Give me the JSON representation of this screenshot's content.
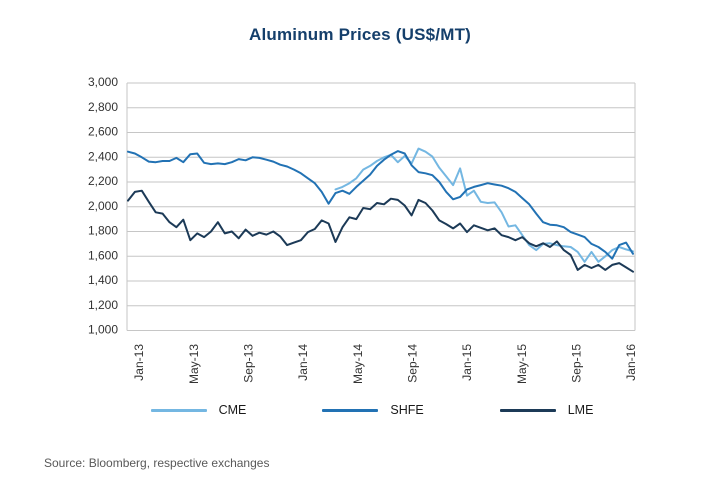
{
  "title": "Aluminum Prices (US$/MT)",
  "source_note": "Source: Bloomberg, respective exchanges",
  "colors": {
    "title": "#153F6B",
    "axis_text": "#333333",
    "grid": "#C6C6C6",
    "plot_border": "#C6C6C6",
    "source_text": "#595959",
    "cme_line": "#74B7E2",
    "shfe_line": "#2272B4",
    "lme_line": "#1C3A57"
  },
  "chart_data": {
    "type": "line",
    "title": "Aluminum Prices (US$/MT)",
    "xlabel": "",
    "ylabel": "",
    "ylim": [
      1000,
      3000
    ],
    "grid": "horizontal",
    "legend_position": "bottom",
    "x_unit": "semi-monthly points from Jan-2013 to Jan-2016",
    "x_tick_labels": [
      "Jan-13",
      "May-13",
      "Sep-13",
      "Jan-14",
      "May-14",
      "Sep-14",
      "Jan-15",
      "May-15",
      "Sep-15",
      "Jan-16"
    ],
    "y_ticks": [
      3000,
      2800,
      2600,
      2400,
      2200,
      2000,
      1800,
      1600,
      1400,
      1200,
      1000
    ],
    "y_tick_labels": [
      "3,000",
      "2,800",
      "2,600",
      "2,400",
      "2,200",
      "2,000",
      "1,800",
      "1,600",
      "1,400",
      "1,200",
      "1,000"
    ],
    "series": [
      {
        "name": "CME",
        "color": "#74B7E2",
        "values": [
          null,
          null,
          null,
          null,
          null,
          null,
          null,
          null,
          null,
          null,
          null,
          null,
          null,
          null,
          null,
          null,
          null,
          null,
          null,
          null,
          null,
          null,
          null,
          null,
          null,
          null,
          null,
          null,
          null,
          null,
          2140,
          2160,
          2190,
          2230,
          2300,
          2330,
          2370,
          2400,
          2420,
          2360,
          2410,
          2350,
          2470,
          2445,
          2405,
          2315,
          2245,
          2175,
          2310,
          2090,
          2130,
          2040,
          2030,
          2035,
          1955,
          1840,
          1850,
          1770,
          1690,
          1650,
          1700,
          1705,
          1690,
          1680,
          1675,
          1635,
          1555,
          1635,
          1555,
          1600,
          1650,
          1675,
          1655,
          1640
        ]
      },
      {
        "name": "SHFE",
        "color": "#2272B4",
        "values": [
          2445,
          2430,
          2400,
          2365,
          2360,
          2370,
          2370,
          2395,
          2360,
          2425,
          2430,
          2355,
          2345,
          2350,
          2345,
          2360,
          2385,
          2375,
          2400,
          2395,
          2380,
          2365,
          2340,
          2325,
          2300,
          2270,
          2230,
          2190,
          2120,
          2025,
          2110,
          2130,
          2105,
          2160,
          2210,
          2260,
          2330,
          2380,
          2420,
          2450,
          2430,
          2335,
          2280,
          2270,
          2255,
          2200,
          2120,
          2060,
          2080,
          2140,
          2160,
          2175,
          2190,
          2180,
          2170,
          2150,
          2120,
          2070,
          2020,
          1945,
          1875,
          1855,
          1850,
          1835,
          1795,
          1775,
          1755,
          1700,
          1675,
          1635,
          1580,
          1690,
          1710,
          1620
        ]
      },
      {
        "name": "LME",
        "color": "#1C3A57",
        "values": [
          2050,
          2120,
          2130,
          2040,
          1955,
          1945,
          1875,
          1835,
          1895,
          1730,
          1785,
          1755,
          1800,
          1875,
          1785,
          1800,
          1745,
          1815,
          1765,
          1790,
          1775,
          1800,
          1760,
          1690,
          1710,
          1730,
          1795,
          1820,
          1890,
          1865,
          1715,
          1835,
          1915,
          1900,
          1990,
          1980,
          2030,
          2020,
          2065,
          2055,
          2010,
          1930,
          2055,
          2030,
          1970,
          1890,
          1860,
          1825,
          1865,
          1795,
          1850,
          1830,
          1810,
          1825,
          1770,
          1755,
          1730,
          1755,
          1705,
          1680,
          1705,
          1675,
          1720,
          1650,
          1610,
          1490,
          1530,
          1505,
          1530,
          1490,
          1530,
          1545,
          1510,
          1475
        ]
      }
    ]
  }
}
